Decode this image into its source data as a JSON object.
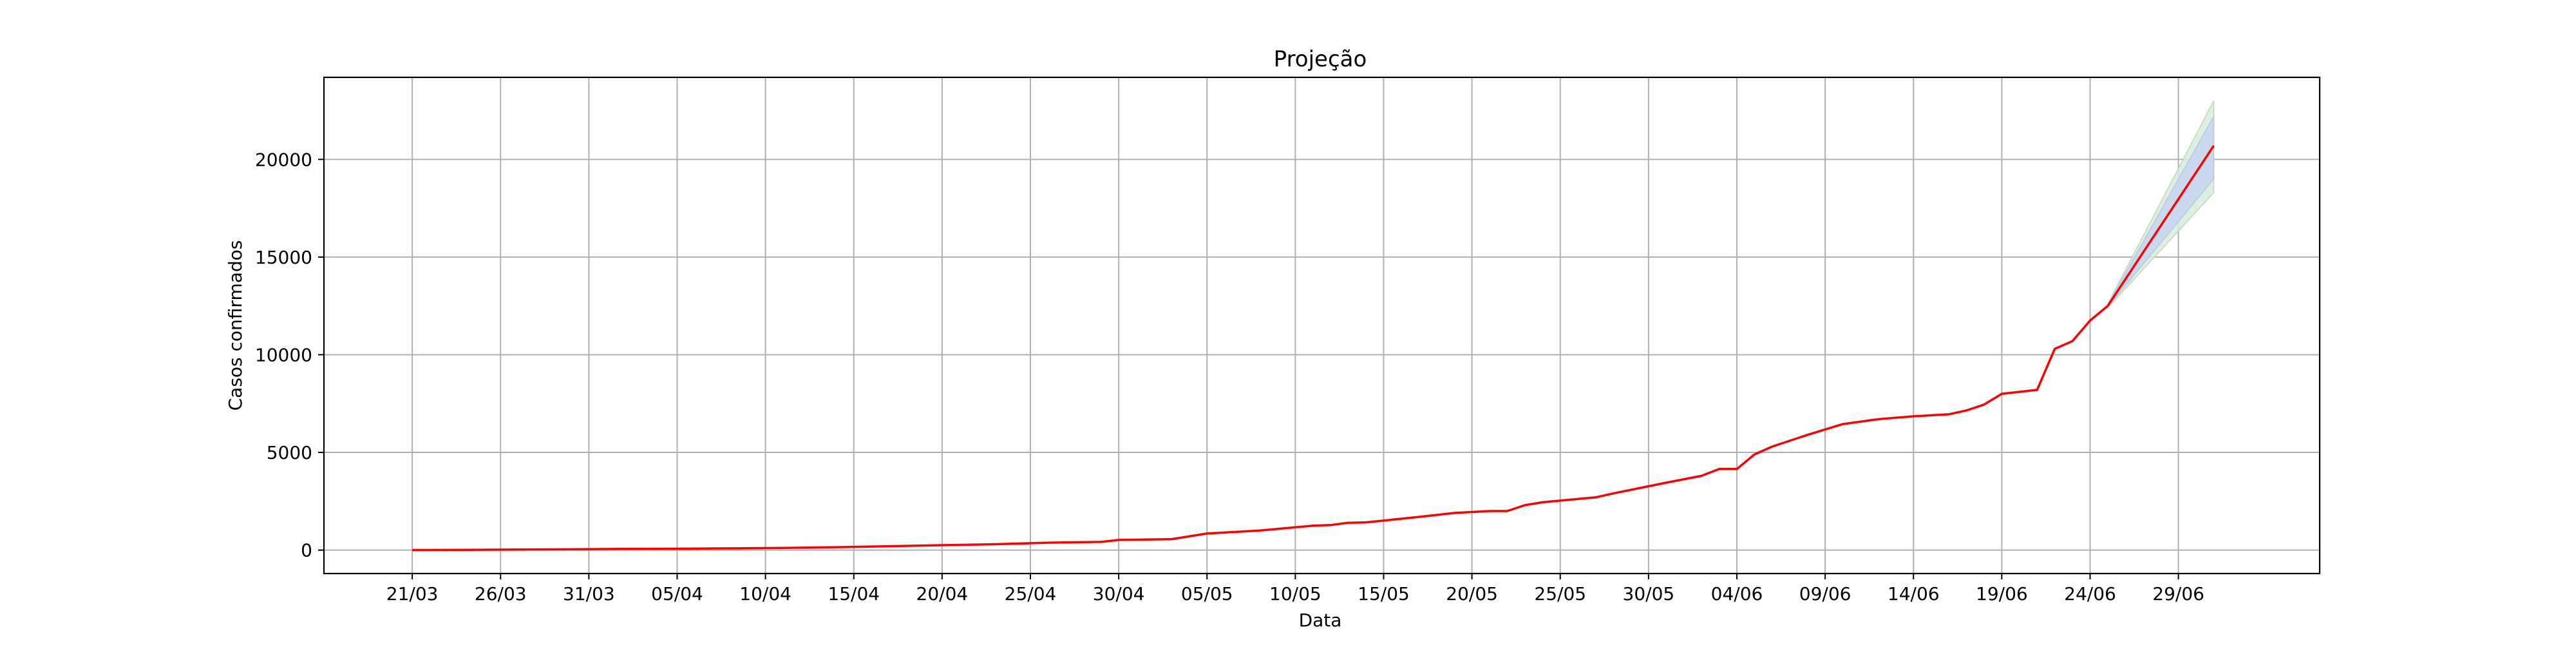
{
  "chart_data": {
    "type": "line",
    "title": "Projeção",
    "xlabel": "Data",
    "ylabel": "Casos confirmados",
    "x_tick_labels": [
      "21/03",
      "26/03",
      "31/03",
      "05/04",
      "10/04",
      "15/04",
      "20/04",
      "25/04",
      "30/04",
      "05/05",
      "10/05",
      "15/05",
      "20/05",
      "25/05",
      "30/05",
      "04/06",
      "09/06",
      "14/06",
      "19/06",
      "24/06",
      "29/06"
    ],
    "x_ticks": [
      "2020-03-21",
      "2020-03-26",
      "2020-03-31",
      "2020-04-05",
      "2020-04-10",
      "2020-04-15",
      "2020-04-20",
      "2020-04-25",
      "2020-04-30",
      "2020-05-05",
      "2020-05-10",
      "2020-05-15",
      "2020-05-20",
      "2020-05-25",
      "2020-05-30",
      "2020-06-04",
      "2020-06-09",
      "2020-06-14",
      "2020-06-19",
      "2020-06-24",
      "2020-06-29"
    ],
    "y_ticks": [
      0,
      5000,
      10000,
      15000,
      20000
    ],
    "xlim": [
      "2020-03-16",
      "2020-07-07"
    ],
    "ylim": [
      -1200,
      24200
    ],
    "grid": true,
    "colors": {
      "line": "#ff0000",
      "band_outer": "#d9ecd9",
      "band_inner": "#c8d6ee",
      "grid": "#b0b0b0"
    },
    "series": [
      {
        "x": [
          "2020-03-21",
          "2020-03-24",
          "2020-03-27",
          "2020-03-30",
          "2020-04-02",
          "2020-04-05",
          "2020-04-08",
          "2020-04-11",
          "2020-04-14",
          "2020-04-17",
          "2020-04-20",
          "2020-04-23",
          "2020-04-26",
          "2020-04-29",
          "2020-04-30",
          "2020-05-03",
          "2020-05-05",
          "2020-05-08",
          "2020-05-11",
          "2020-05-12",
          "2020-05-13",
          "2020-05-14",
          "2020-05-17",
          "2020-05-19",
          "2020-05-21",
          "2020-05-22",
          "2020-05-23",
          "2020-05-24",
          "2020-05-27",
          "2020-05-28",
          "2020-05-31",
          "2020-06-02",
          "2020-06-03",
          "2020-06-04",
          "2020-06-05",
          "2020-06-06",
          "2020-06-08",
          "2020-06-10",
          "2020-06-12",
          "2020-06-14",
          "2020-06-16",
          "2020-06-17",
          "2020-06-18",
          "2020-06-19",
          "2020-06-21",
          "2020-06-22",
          "2020-06-23",
          "2020-06-24",
          "2020-06-25"
        ],
        "values": [
          5,
          15,
          30,
          40,
          60,
          70,
          90,
          110,
          150,
          200,
          250,
          300,
          380,
          420,
          520,
          560,
          850,
          1000,
          1250,
          1280,
          1400,
          1420,
          1700,
          1900,
          2000,
          2000,
          2300,
          2450,
          2700,
          2900,
          3450,
          3800,
          4150,
          4150,
          4900,
          5300,
          5900,
          6450,
          6700,
          6850,
          6950,
          7150,
          7450,
          8000,
          8200,
          10300,
          10700,
          11750,
          12500
        ]
      },
      {
        "x": [
          "2020-06-25",
          "2020-07-01"
        ],
        "values": [
          12500,
          20700
        ]
      }
    ],
    "projection_band_outer": {
      "x": [
        "2020-06-25",
        "2020-07-01"
      ],
      "lower": [
        12400,
        18300
      ],
      "upper": [
        12600,
        23000
      ]
    },
    "projection_band_inner": {
      "x": [
        "2020-06-25",
        "2020-07-01"
      ],
      "lower": [
        12450,
        19000
      ],
      "upper": [
        12550,
        22200
      ]
    }
  }
}
